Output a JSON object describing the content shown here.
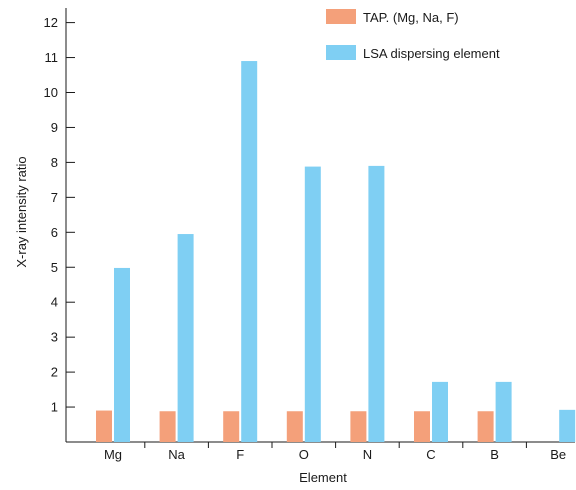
{
  "chart_data": {
    "type": "bar",
    "categories": [
      "Mg",
      "Na",
      "F",
      "O",
      "N",
      "C",
      "B",
      "Be"
    ],
    "series": [
      {
        "name": "TAP. (Mg, Na, F)",
        "color": "#f4a07a",
        "values": [
          0.9,
          0.88,
          0.88,
          0.88,
          0.88,
          0.88,
          0.88,
          null
        ]
      },
      {
        "name": "LSA dispersing element",
        "color": "#7fcff3",
        "values": [
          4.98,
          5.95,
          10.9,
          7.88,
          7.9,
          1.72,
          1.72,
          0.92
        ]
      }
    ],
    "xlabel": "Element",
    "ylabel": "X-ray intensity ratio",
    "yticks": [
      1,
      2,
      3,
      4,
      5,
      6,
      7,
      8,
      9,
      10,
      11,
      12
    ],
    "ylim": [
      0,
      12.4
    ],
    "legend_position": "top-right",
    "grid": false
  }
}
